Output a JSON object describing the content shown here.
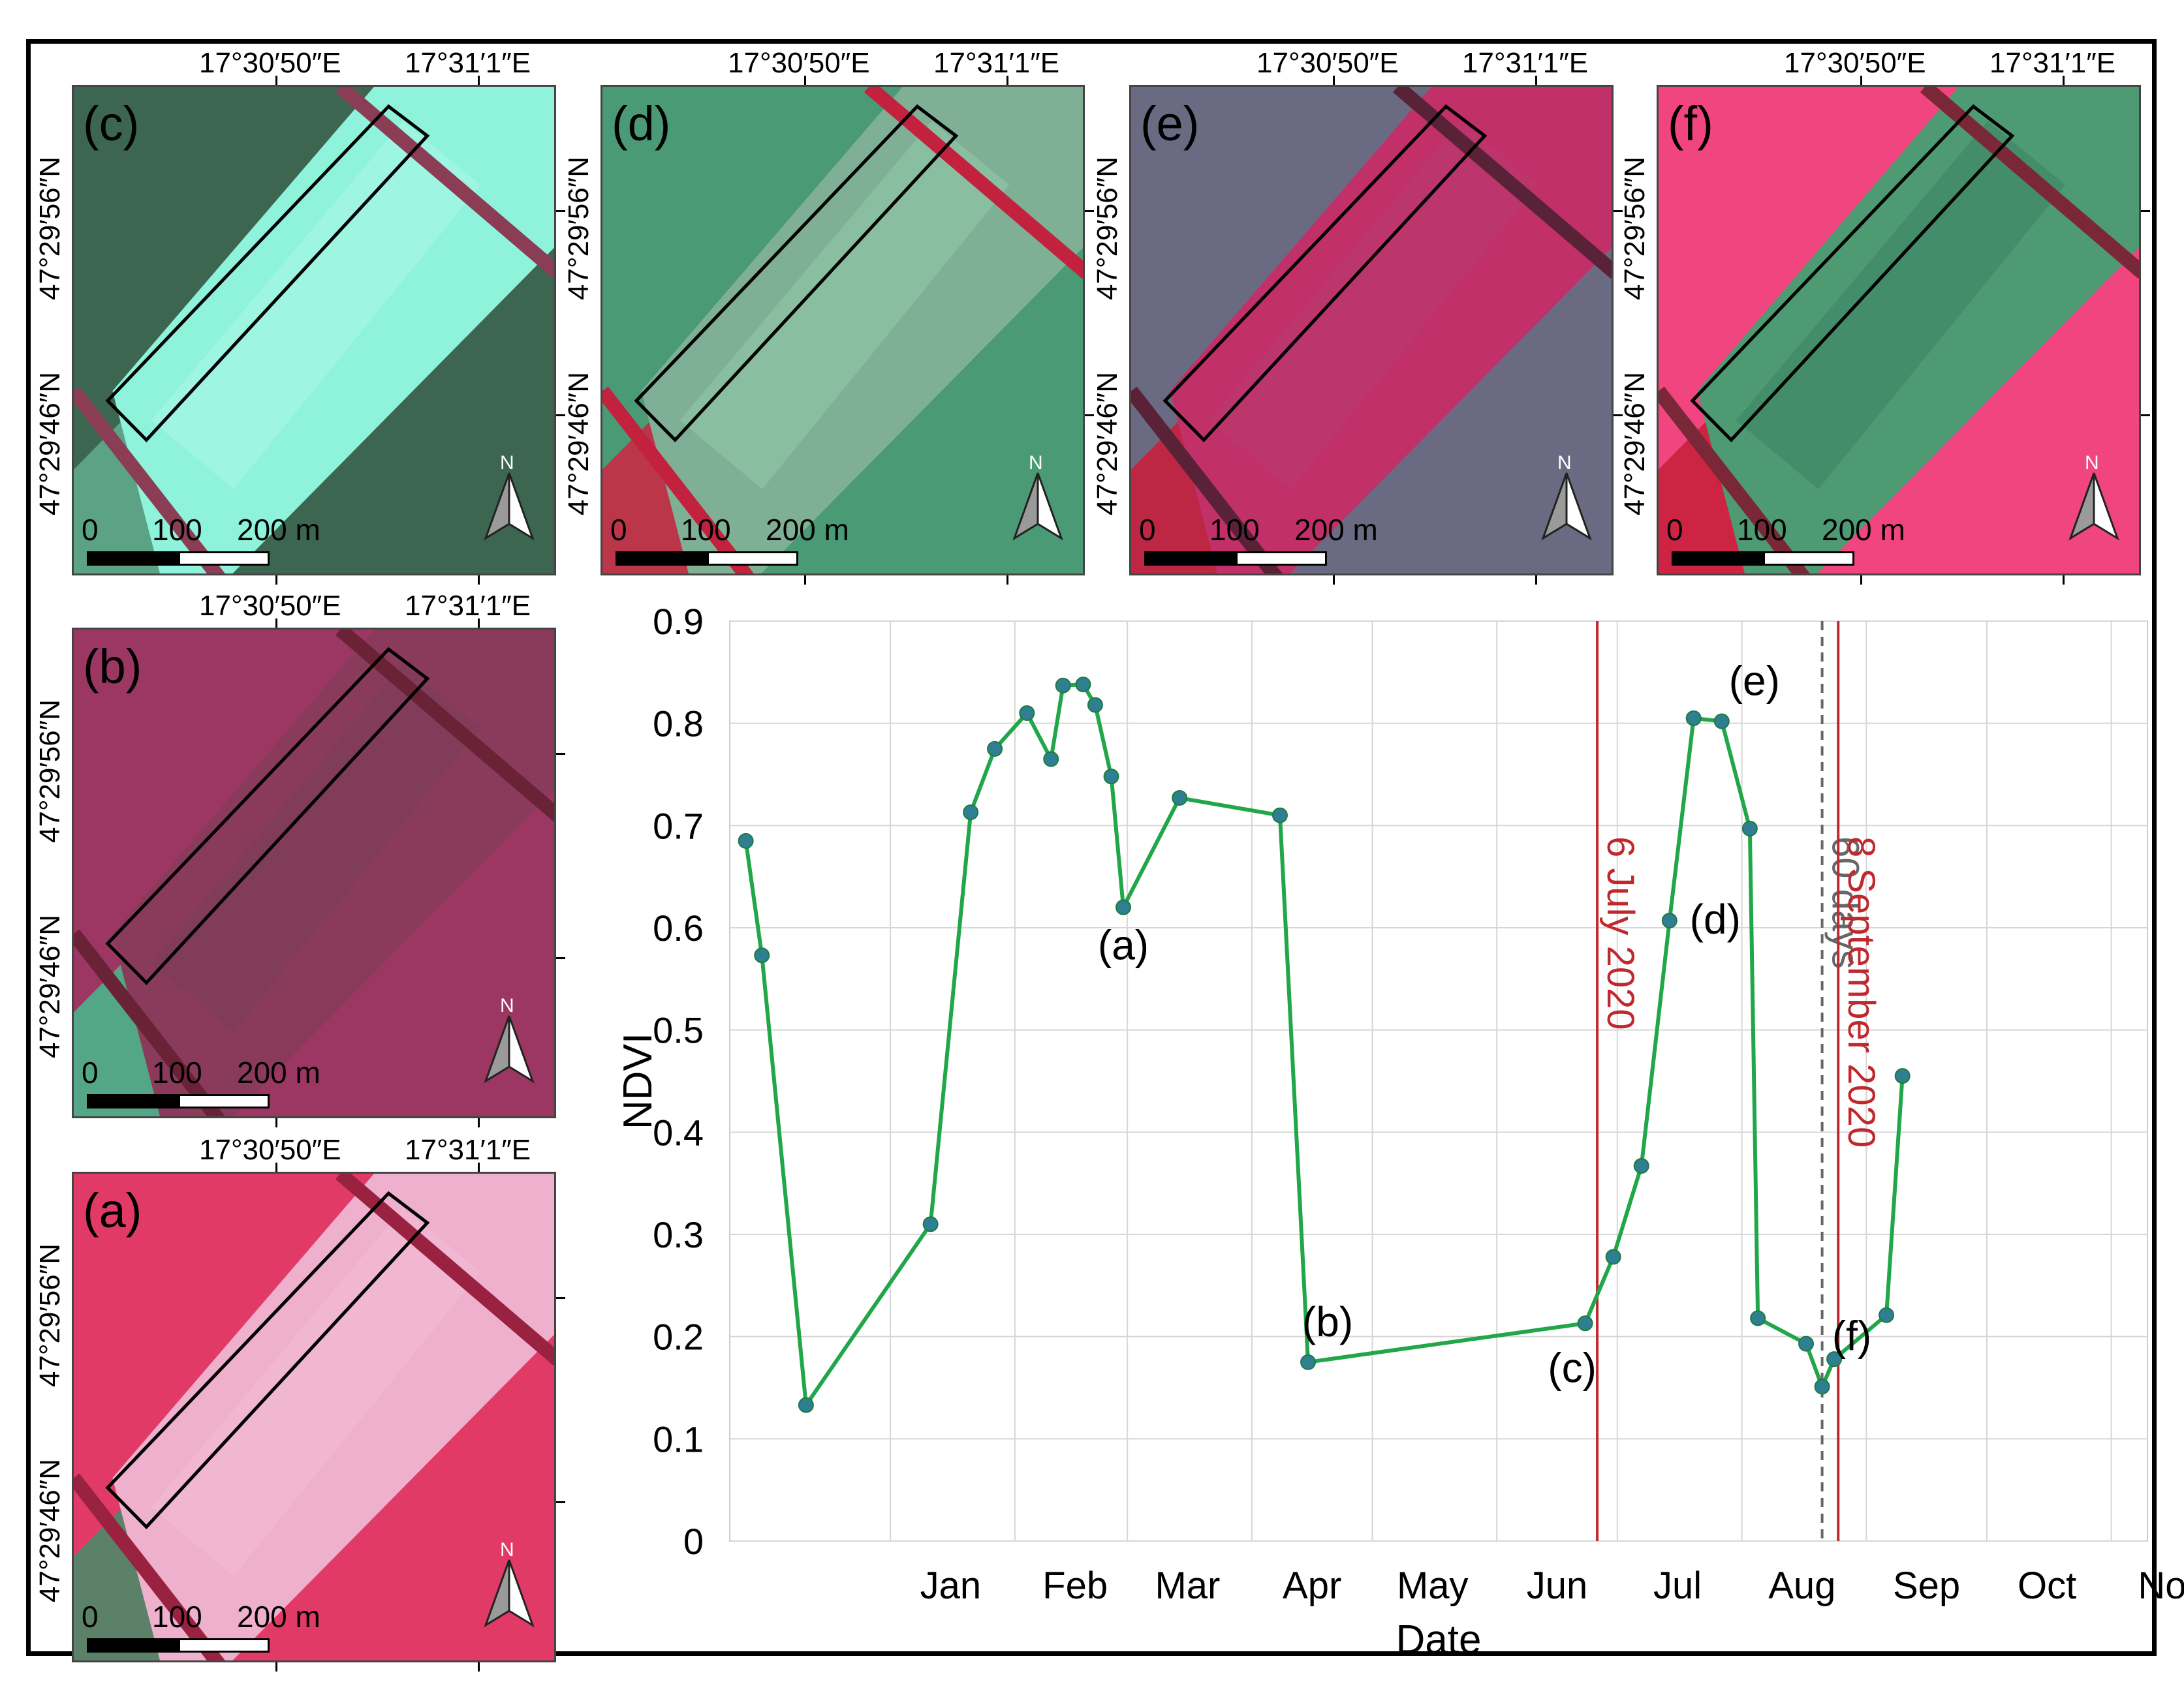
{
  "maps": [
    {
      "id": "c",
      "label": "(c)",
      "coord_e1": "17°30′50″E",
      "coord_e2": "17°31′1″E",
      "coord_n1": "47°29′56″N",
      "coord_n2": "47°29′46″N",
      "scale": {
        "z": "0",
        "m": "100",
        "e": "200 m"
      },
      "north": "N",
      "colors": {
        "bg": "#3d6651",
        "field": "#8ff3dc",
        "band": "#a6f6e6",
        "edge": "#8a3d55",
        "accent": "#5fa88a"
      }
    },
    {
      "id": "d",
      "label": "(d)",
      "coord_e1": "17°30′50″E",
      "coord_e2": "17°31′1″E",
      "coord_n1": "47°29′56″N",
      "coord_n2": "47°29′46″N",
      "scale": {
        "z": "0",
        "m": "100",
        "e": "200 m"
      },
      "north": "N",
      "colors": {
        "bg": "#4a9a75",
        "field": "#7fb095",
        "band": "#8fc9a9",
        "edge": "#c3223f",
        "accent": "#c82b45"
      }
    },
    {
      "id": "e",
      "label": "(e)",
      "coord_e1": "17°30′50″E",
      "coord_e2": "17°31′1″E",
      "coord_n1": "47°29′56″N",
      "coord_n2": "47°29′46″N",
      "scale": {
        "z": "0",
        "m": "100",
        "e": "200 m"
      },
      "north": "N",
      "colors": {
        "bg": "#6a6a82",
        "field": "#c2306a",
        "band": "#b7386f",
        "edge": "#5a2236",
        "accent": "#c8203d"
      }
    },
    {
      "id": "f",
      "label": "(f)",
      "coord_e1": "17°30′50″E",
      "coord_e2": "17°31′1″E",
      "coord_n1": "47°29′56″N",
      "coord_n2": "47°29′46″N",
      "scale": {
        "z": "0",
        "m": "100",
        "e": "200 m"
      },
      "north": "N",
      "colors": {
        "bg": "#f1457f",
        "field": "#4d9a73",
        "band": "#3f8564",
        "edge": "#7a2838",
        "accent": "#c9203d"
      }
    },
    {
      "id": "b",
      "label": "(b)",
      "coord_e1": "17°30′50″E",
      "coord_e2": "17°31′1″E",
      "coord_n1": "47°29′56″N",
      "coord_n2": "47°29′46″N",
      "scale": {
        "z": "0",
        "m": "100",
        "e": "200 m"
      },
      "north": "N",
      "colors": {
        "bg": "#9c3763",
        "field": "#8a3a5a",
        "band": "#7a3d58",
        "edge": "#6a2236",
        "accent": "#4cb48a"
      }
    },
    {
      "id": "a",
      "label": "(a)",
      "coord_e1": "17°30′50″E",
      "coord_e2": "17°31′1″E",
      "coord_n1": "47°29′56″N",
      "coord_n2": "47°29′46″N",
      "scale": {
        "z": "0",
        "m": "100",
        "e": "200 m"
      },
      "north": "N",
      "colors": {
        "bg": "#e23a66",
        "field": "#efb0cd",
        "band": "#f2bbd6",
        "edge": "#9a2241",
        "accent": "#4d8a68"
      }
    }
  ],
  "chart_data": {
    "type": "line",
    "xlabel": "Date",
    "ylabel": "NDVI",
    "ylim": [
      0,
      0.9
    ],
    "yticks": [
      "0",
      "0.1",
      "0.2",
      "0.3",
      "0.4",
      "0.5",
      "0.6",
      "0.7",
      "0.8",
      "0.9"
    ],
    "xticks": [
      "Jan",
      "Feb",
      "Mar",
      "Apr",
      "May",
      "Jun",
      "Jul",
      "Aug",
      "Sep",
      "Oct",
      "Nov"
    ],
    "xrange_days": [
      -40,
      313
    ],
    "month_starts": [
      0,
      31,
      59,
      90,
      120,
      151,
      181,
      212,
      243,
      273,
      304
    ],
    "series": [
      {
        "name": "NDVI",
        "x": [
          -36,
          -32,
          -21,
          10,
          20,
          26,
          34,
          40,
          43,
          48,
          51,
          55,
          58,
          62,
          72,
          97,
          104,
          173,
          180,
          187,
          194,
          200,
          207,
          214,
          216,
          228,
          232,
          235,
          248,
          252,
          261,
          266,
          271,
          296
        ],
        "y": [
          0.685,
          0.573,
          0.133,
          0.31,
          0.713,
          0.775,
          0.81,
          0.765,
          0.837,
          0.838,
          0.818,
          0.748,
          0.62,
          null,
          0.727,
          0.71,
          0.175,
          0.213,
          0.278,
          0.367,
          0.607,
          0.805,
          0.802,
          0.697,
          0.218,
          0.193,
          0.151,
          0.178,
          0.221,
          0.455,
          null,
          null,
          null,
          null
        ],
        "line_color": "#22a64a",
        "marker_color": "#2f7f92"
      }
    ],
    "annotations": [
      {
        "label": "(a)",
        "day": 58
      },
      {
        "label": "(b)",
        "day": 104
      },
      {
        "label": "(c)",
        "day": 173
      },
      {
        "label": "(d)",
        "day": 194
      },
      {
        "label": "(e)",
        "day": 207
      },
      {
        "label": "(f)",
        "day": 228
      }
    ],
    "vlines": [
      {
        "label": "6 July 2020",
        "day": 176,
        "color": "#c0282d",
        "style": "solid"
      },
      {
        "label": "60 days",
        "day": 232,
        "color": "#666666",
        "style": "dashed"
      },
      {
        "label": "8 September 2020",
        "day": 236,
        "color": "#c0282d",
        "style": "solid"
      }
    ]
  }
}
